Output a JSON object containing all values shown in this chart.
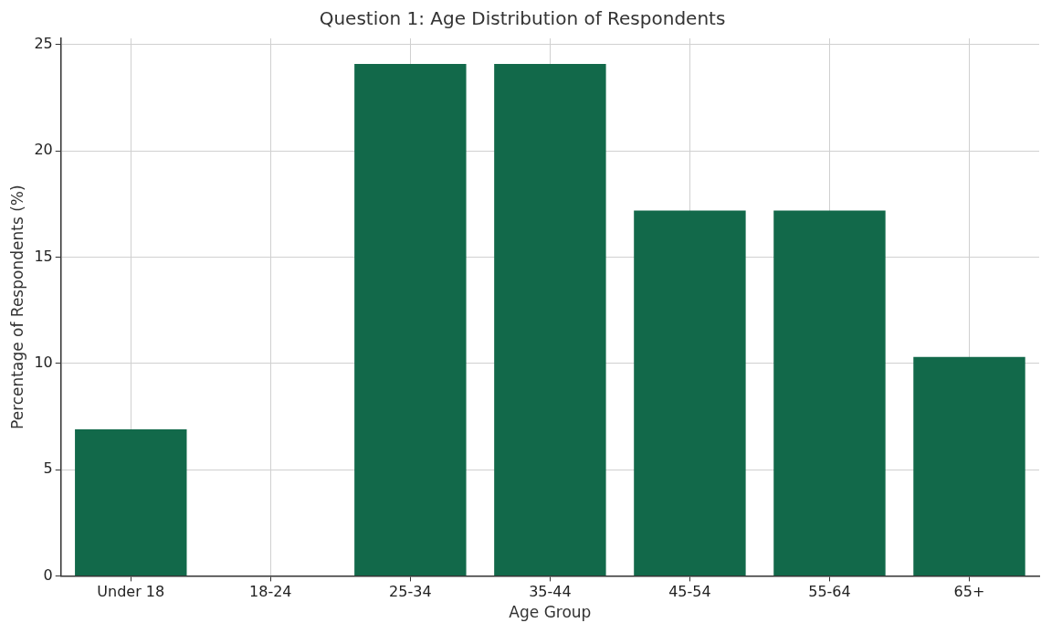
{
  "chart_data": {
    "type": "bar",
    "title": "Question 1: Age Distribution of Respondents",
    "xlabel": "Age Group",
    "ylabel": "Percentage of Respondents (%)",
    "categories": [
      "Under 18",
      "18-24",
      "25-34",
      "35-44",
      "45-54",
      "55-64",
      "65+"
    ],
    "values": [
      6.9,
      0,
      24.1,
      24.1,
      17.2,
      17.2,
      10.3
    ],
    "color": "#12694a",
    "ylim": [
      0,
      25.3
    ],
    "yticks": [
      0,
      5,
      10,
      15,
      20,
      25
    ],
    "grid": true,
    "legend": false
  }
}
